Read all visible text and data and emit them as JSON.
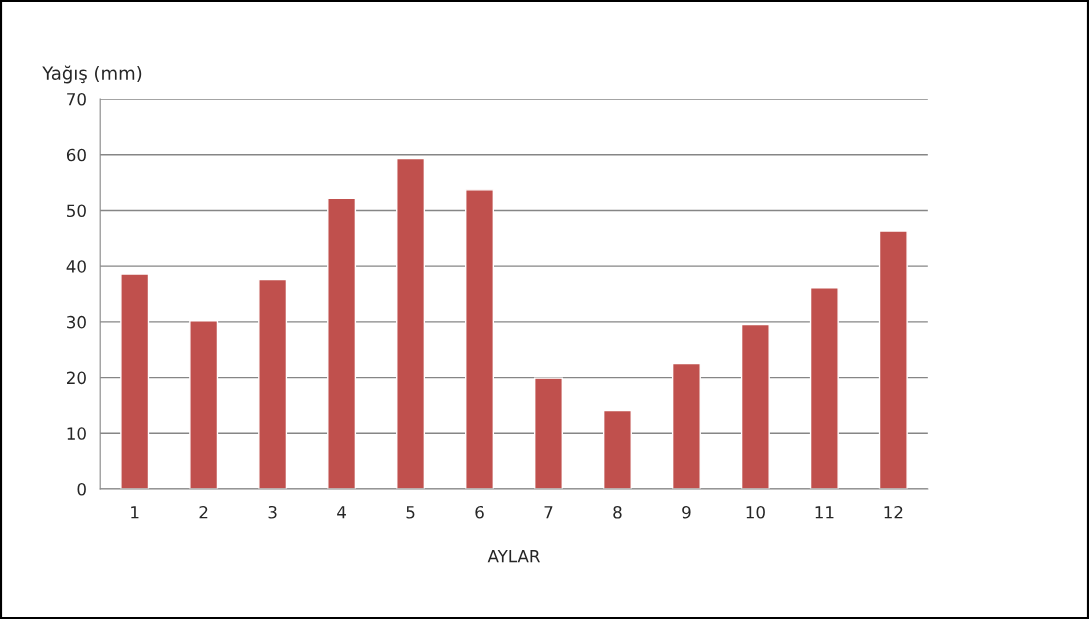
{
  "chart_data": {
    "type": "bar",
    "ylabel": "Yağış (mm)",
    "xlabel": "AYLAR",
    "categories": [
      "1",
      "2",
      "3",
      "4",
      "5",
      "6",
      "7",
      "8",
      "9",
      "10",
      "11",
      "12"
    ],
    "values": [
      38.6,
      30.2,
      37.6,
      52.2,
      59.3,
      53.7,
      19.9,
      14.1,
      22.5,
      29.5,
      36.1,
      46.3
    ],
    "color": "#c0504d",
    "ylim": [
      0,
      70
    ],
    "yticks": [
      0,
      10,
      20,
      30,
      40,
      50,
      60,
      70
    ],
    "grid": "y",
    "legend": false
  }
}
